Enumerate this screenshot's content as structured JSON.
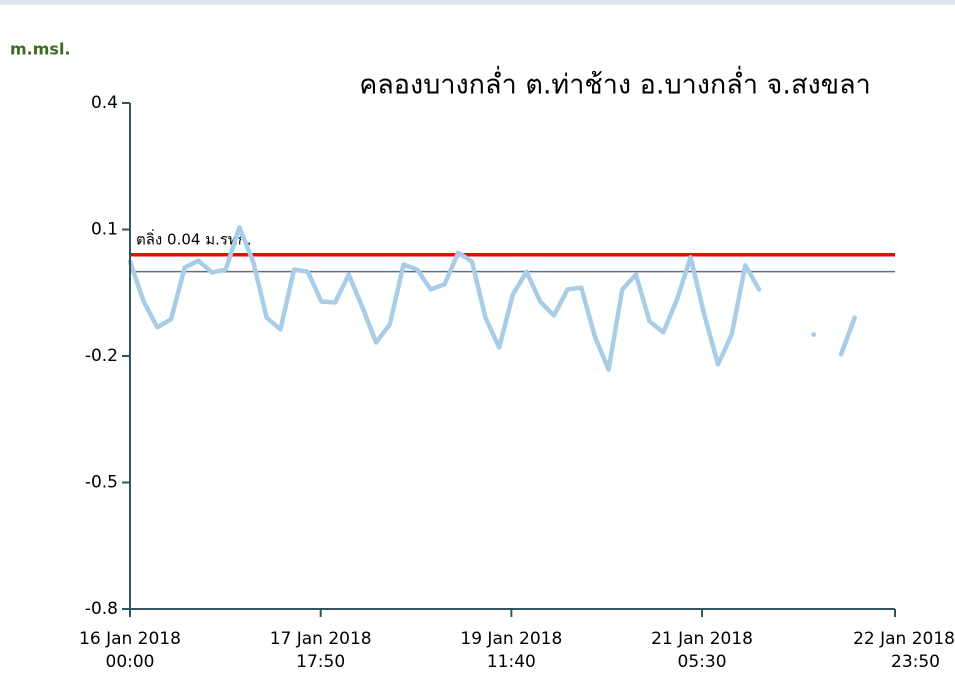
{
  "chart_data": {
    "type": "line",
    "title": "คลองบางกล่ำ ต.ท่าช้าง อ.บางกล่ำ จ.สงขลา",
    "y_label": "m.msl.",
    "x": [
      "2018-01-16 00:00",
      "2018-01-16 03:00",
      "2018-01-16 06:00",
      "2018-01-16 09:00",
      "2018-01-16 12:00",
      "2018-01-16 15:00",
      "2018-01-16 18:00",
      "2018-01-16 21:00",
      "2018-01-17 00:00",
      "2018-01-17 03:00",
      "2018-01-17 06:00",
      "2018-01-17 09:00",
      "2018-01-17 12:00",
      "2018-01-17 15:00",
      "2018-01-17 18:00",
      "2018-01-17 21:00",
      "2018-01-18 00:00",
      "2018-01-18 03:00",
      "2018-01-18 06:00",
      "2018-01-18 09:00",
      "2018-01-18 12:00",
      "2018-01-18 15:00",
      "2018-01-18 18:00",
      "2018-01-18 21:00",
      "2018-01-19 00:00",
      "2018-01-19 03:00",
      "2018-01-19 06:00",
      "2018-01-19 09:00",
      "2018-01-19 12:00",
      "2018-01-19 15:00",
      "2018-01-19 18:00",
      "2018-01-19 21:00",
      "2018-01-20 00:00",
      "2018-01-20 03:00",
      "2018-01-20 06:00",
      "2018-01-20 09:00",
      "2018-01-20 12:00",
      "2018-01-20 15:00",
      "2018-01-20 18:00",
      "2018-01-20 21:00",
      "2018-01-21 00:00",
      "2018-01-21 03:00",
      "2018-01-21 06:00",
      "2018-01-21 09:00",
      "2018-01-21 12:00",
      "2018-01-21 15:00",
      "2018-01-21 18:00",
      "2018-01-21 21:00",
      "2018-01-22 00:00",
      "2018-01-22 03:00",
      "2018-01-22 06:00",
      "2018-01-22 09:00",
      "2018-01-22 12:00",
      "2018-01-22 15:00"
    ],
    "series": [
      {
        "color": "#a9cde6",
        "values": [
          0.024,
          -0.071,
          -0.132,
          -0.113,
          0.01,
          0.026,
          -0.002,
          0.005,
          0.105,
          0.024,
          -0.109,
          -0.137,
          0.005,
          0.0,
          -0.071,
          -0.073,
          -0.007,
          -0.085,
          -0.168,
          -0.125,
          0.017,
          0.005,
          -0.042,
          -0.03,
          0.045,
          0.024,
          -0.109,
          -0.18,
          -0.054,
          0.0,
          -0.071,
          -0.104,
          -0.042,
          -0.038,
          -0.154,
          -0.232,
          -0.042,
          -0.007,
          -0.118,
          -0.144,
          -0.066,
          0.034,
          -0.102,
          -0.22,
          -0.149,
          0.015,
          -0.042,
          null,
          null,
          null,
          -0.149,
          null,
          -0.196,
          -0.109
        ]
      }
    ],
    "threshold": {
      "value": 0.04,
      "color": "#ff0000",
      "label": "ตลิ่ง 0.04 ม.รทก."
    },
    "reference_line": {
      "value": 0.0,
      "color": "#607080"
    },
    "xlim": [
      "2018-01-16 00:00",
      "2018-01-22 23:50"
    ],
    "xticks": [
      {
        "value": "2018-01-16 00:00",
        "label": [
          "16 Jan 2018",
          "00:00"
        ]
      },
      {
        "value": "2018-01-17 17:50",
        "label": [
          "17 Jan 2018",
          "17:50"
        ]
      },
      {
        "value": "2018-01-19 11:40",
        "label": [
          "19 Jan 2018",
          "11:40"
        ]
      },
      {
        "value": "2018-01-21 05:30",
        "label": [
          "21 Jan 2018",
          "05:30"
        ]
      },
      {
        "value": "2018-01-22 23:50",
        "label": [
          "22 Jan 2018",
          "23:50"
        ]
      }
    ],
    "ylim": [
      -0.8,
      0.4
    ],
    "yticks": [
      0.4,
      0.1,
      -0.2,
      -0.5,
      -0.8
    ]
  }
}
